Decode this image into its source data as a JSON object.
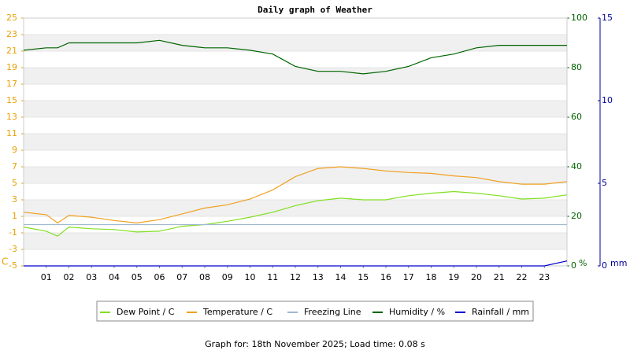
{
  "chart_data": {
    "type": "line",
    "title": "Daily graph of Weather",
    "footer": "Graph for: 18th November 2025; Load time: 0.08 s",
    "y_unit": "C",
    "y2_unit": "%",
    "y3_unit": "mm",
    "x": [
      0,
      1,
      1.5,
      2,
      3,
      4,
      5,
      6,
      7,
      8,
      9,
      10,
      11,
      12,
      13,
      14,
      15,
      16,
      17,
      18,
      19,
      20,
      21,
      22,
      23,
      24
    ],
    "xlim": [
      0,
      24
    ],
    "xticks": [
      {
        "value": 1,
        "label": "01"
      },
      {
        "value": 2,
        "label": "02"
      },
      {
        "value": 3,
        "label": "03"
      },
      {
        "value": 4,
        "label": "04"
      },
      {
        "value": 5,
        "label": "05"
      },
      {
        "value": 6,
        "label": "06"
      },
      {
        "value": 7,
        "label": "07"
      },
      {
        "value": 8,
        "label": "08"
      },
      {
        "value": 9,
        "label": "09"
      },
      {
        "value": 10,
        "label": "10"
      },
      {
        "value": 11,
        "label": "11"
      },
      {
        "value": 12,
        "label": "12"
      },
      {
        "value": 13,
        "label": "13"
      },
      {
        "value": 14,
        "label": "14"
      },
      {
        "value": 15,
        "label": "15"
      },
      {
        "value": 16,
        "label": "16"
      },
      {
        "value": 17,
        "label": "17"
      },
      {
        "value": 18,
        "label": "18"
      },
      {
        "value": 19,
        "label": "19"
      },
      {
        "value": 20,
        "label": "20"
      },
      {
        "value": 21,
        "label": "21"
      },
      {
        "value": 22,
        "label": "22"
      },
      {
        "value": 23,
        "label": "23"
      }
    ],
    "ylim": [
      -5,
      25
    ],
    "yticks": [
      -5,
      -3,
      -1,
      1,
      3,
      5,
      7,
      9,
      11,
      13,
      15,
      17,
      19,
      21,
      23,
      25
    ],
    "y2lim": [
      0,
      100
    ],
    "y2ticks": [
      0,
      20,
      40,
      60,
      80,
      100
    ],
    "y3lim": [
      0,
      15
    ],
    "y3ticks": [
      0,
      5,
      10,
      15
    ],
    "series": [
      {
        "name": "Dew Point / C",
        "color": "#80e020",
        "axis": "y",
        "values": [
          -0.3,
          -0.8,
          -1.4,
          -0.3,
          -0.5,
          -0.6,
          -0.9,
          -0.8,
          -0.2,
          0,
          0.4,
          0.9,
          1.5,
          2.3,
          2.9,
          3.2,
          3.0,
          3.0,
          3.5,
          3.8,
          4.0,
          3.8,
          3.5,
          3.1,
          3.2,
          3.6
        ]
      },
      {
        "name": "Temperature / C",
        "color": "#f0a020",
        "axis": "y",
        "values": [
          1.5,
          1.2,
          0.2,
          1.1,
          0.9,
          0.5,
          0.2,
          0.6,
          1.3,
          2.0,
          2.4,
          3.1,
          4.2,
          5.8,
          6.8,
          7.0,
          6.8,
          6.5,
          6.3,
          6.2,
          5.9,
          5.7,
          5.2,
          4.9,
          4.9,
          5.2
        ]
      },
      {
        "name": "Freezing Line",
        "color": "#a0b8d0",
        "axis": "y",
        "values": [
          0,
          0,
          0,
          0,
          0,
          0,
          0,
          0,
          0,
          0,
          0,
          0,
          0,
          0,
          0,
          0,
          0,
          0,
          0,
          0,
          0,
          0,
          0,
          0,
          0,
          0
        ]
      },
      {
        "name": "Humidity / %",
        "color": "#006400",
        "axis": "y2",
        "values": [
          87,
          88,
          88,
          90,
          90,
          90,
          90,
          91,
          89,
          88,
          88,
          87,
          85.5,
          80.5,
          78.5,
          78.5,
          77.5,
          78.5,
          80.5,
          84,
          85.5,
          88,
          89,
          89,
          89,
          89
        ]
      },
      {
        "name": "Rainfall / mm",
        "color": "#0000cc",
        "axis": "y3",
        "values": [
          0,
          0,
          0,
          0,
          0,
          0,
          0,
          0,
          0,
          0,
          0,
          0,
          0,
          0,
          0,
          0,
          0,
          0,
          0,
          0,
          0,
          0,
          0,
          0,
          0,
          0.3
        ]
      }
    ]
  }
}
